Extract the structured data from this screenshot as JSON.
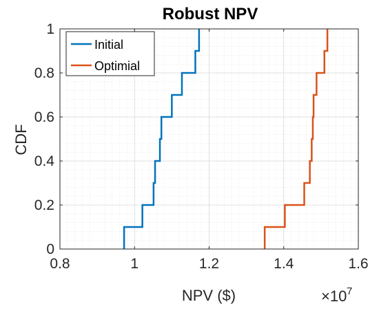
{
  "chart_data": {
    "type": "line",
    "title": "Robust NPV",
    "xlabel": "NPV ($)",
    "ylabel": "CDF",
    "x_exponent_base": "×10",
    "x_exponent_power": "7",
    "xlim": [
      0.8,
      1.6
    ],
    "ylim": [
      0,
      1
    ],
    "xticks": [
      0.8,
      1.0,
      1.2,
      1.4,
      1.6
    ],
    "xtick_labels": [
      "0.8",
      "1",
      "1.2",
      "1.4",
      "1.6"
    ],
    "yticks": [
      0,
      0.2,
      0.4,
      0.6,
      0.8,
      1
    ],
    "ytick_labels": [
      "0",
      "0.2",
      "0.4",
      "0.6",
      "0.8",
      "1"
    ],
    "grid": true,
    "minor_grid": true,
    "legend_position": "top-left",
    "series": [
      {
        "name": "Initial",
        "color": "#0072BD",
        "step_x": [
          0.972,
          1.021,
          1.051,
          1.055,
          1.068,
          1.072,
          1.1,
          1.127,
          1.163,
          1.173
        ],
        "step_y": [
          0.1,
          0.2,
          0.3,
          0.4,
          0.5,
          0.6,
          0.7,
          0.8,
          0.9,
          1.0
        ]
      },
      {
        "name": "Optimial",
        "color": "#D95319",
        "step_x": [
          1.349,
          1.403,
          1.455,
          1.47,
          1.475,
          1.478,
          1.48,
          1.488,
          1.509,
          1.517
        ],
        "step_y": [
          0.1,
          0.2,
          0.3,
          0.4,
          0.5,
          0.6,
          0.7,
          0.8,
          0.9,
          1.0
        ]
      }
    ]
  }
}
